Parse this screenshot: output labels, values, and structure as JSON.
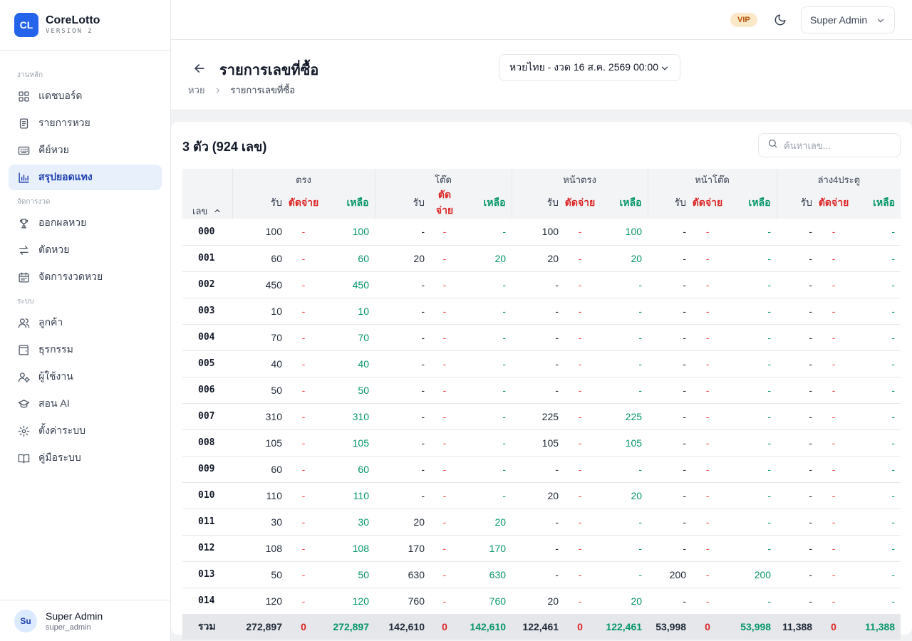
{
  "brand": {
    "logo": "CL",
    "name": "CoreLotto",
    "version": "VERSION 2"
  },
  "sidebar": {
    "sections": [
      {
        "title": "งานหลัก",
        "items": [
          {
            "label": "แดชบอร์ด",
            "icon": "dashboard-icon",
            "active": false
          },
          {
            "label": "รายการหวย",
            "icon": "document-icon",
            "active": false
          },
          {
            "label": "คีย์หวย",
            "icon": "keyboard-icon",
            "active": false
          },
          {
            "label": "สรุปยอดแทง",
            "icon": "bar-chart-icon",
            "active": true
          }
        ]
      },
      {
        "title": "จัดการงวด",
        "items": [
          {
            "label": "ออกผลหวย",
            "icon": "trophy-icon",
            "active": false
          },
          {
            "label": "ตัดหวย",
            "icon": "swap-icon",
            "active": false
          },
          {
            "label": "จัดการงวดหวย",
            "icon": "calendar-icon",
            "active": false
          }
        ]
      },
      {
        "title": "ระบบ",
        "items": [
          {
            "label": "ลูกค้า",
            "icon": "users-icon",
            "active": false
          },
          {
            "label": "ธุรกรรม",
            "icon": "wallet-icon",
            "active": false
          },
          {
            "label": "ผู้ใช้งาน",
            "icon": "user-gear-icon",
            "active": false
          },
          {
            "label": "สอน AI",
            "icon": "graduation-cap-icon",
            "active": false
          },
          {
            "label": "ตั้งค่าระบบ",
            "icon": "gear-icon",
            "active": false
          },
          {
            "label": "คู่มือระบบ",
            "icon": "book-icon",
            "active": false
          }
        ]
      }
    ],
    "footer": {
      "avatar": "Su",
      "name": "Super Admin",
      "handle": "super_admin"
    }
  },
  "topbar": {
    "vip": "VIP",
    "user_menu": "Super Admin"
  },
  "header": {
    "title": "รายการเลขที่ซื้อ",
    "breadcrumb": [
      "หวย",
      "รายการเลขที่ซื้อ"
    ],
    "period": "หวยไทย - งวด 16 ส.ค. 2569 00:00"
  },
  "card": {
    "title": "3 ตัว (924 เลข)",
    "search_placeholder": "ค้นหาเลข...",
    "num_header": "เลข",
    "groups": [
      "ตรง",
      "โต๊ด",
      "หน้าตรง",
      "หน้าโต๊ด",
      "ล่าง4ประตู"
    ],
    "sub_headers": {
      "receive": "รับ",
      "pay": "ตัดจ่าย",
      "remain": "เหลือ"
    },
    "rows": [
      [
        "000",
        "100",
        "-",
        "100",
        "-",
        "-",
        "-",
        "100",
        "-",
        "100",
        "-",
        "-",
        "-",
        "-",
        "-",
        "-"
      ],
      [
        "001",
        "60",
        "-",
        "60",
        "20",
        "-",
        "20",
        "20",
        "-",
        "20",
        "-",
        "-",
        "-",
        "-",
        "-",
        "-"
      ],
      [
        "002",
        "450",
        "-",
        "450",
        "-",
        "-",
        "-",
        "-",
        "-",
        "-",
        "-",
        "-",
        "-",
        "-",
        "-",
        "-"
      ],
      [
        "003",
        "10",
        "-",
        "10",
        "-",
        "-",
        "-",
        "-",
        "-",
        "-",
        "-",
        "-",
        "-",
        "-",
        "-",
        "-"
      ],
      [
        "004",
        "70",
        "-",
        "70",
        "-",
        "-",
        "-",
        "-",
        "-",
        "-",
        "-",
        "-",
        "-",
        "-",
        "-",
        "-"
      ],
      [
        "005",
        "40",
        "-",
        "40",
        "-",
        "-",
        "-",
        "-",
        "-",
        "-",
        "-",
        "-",
        "-",
        "-",
        "-",
        "-"
      ],
      [
        "006",
        "50",
        "-",
        "50",
        "-",
        "-",
        "-",
        "-",
        "-",
        "-",
        "-",
        "-",
        "-",
        "-",
        "-",
        "-"
      ],
      [
        "007",
        "310",
        "-",
        "310",
        "-",
        "-",
        "-",
        "225",
        "-",
        "225",
        "-",
        "-",
        "-",
        "-",
        "-",
        "-"
      ],
      [
        "008",
        "105",
        "-",
        "105",
        "-",
        "-",
        "-",
        "105",
        "-",
        "105",
        "-",
        "-",
        "-",
        "-",
        "-",
        "-"
      ],
      [
        "009",
        "60",
        "-",
        "60",
        "-",
        "-",
        "-",
        "-",
        "-",
        "-",
        "-",
        "-",
        "-",
        "-",
        "-",
        "-"
      ],
      [
        "010",
        "110",
        "-",
        "110",
        "-",
        "-",
        "-",
        "20",
        "-",
        "20",
        "-",
        "-",
        "-",
        "-",
        "-",
        "-"
      ],
      [
        "011",
        "30",
        "-",
        "30",
        "20",
        "-",
        "20",
        "-",
        "-",
        "-",
        "-",
        "-",
        "-",
        "-",
        "-",
        "-"
      ],
      [
        "012",
        "108",
        "-",
        "108",
        "170",
        "-",
        "170",
        "-",
        "-",
        "-",
        "-",
        "-",
        "-",
        "-",
        "-",
        "-"
      ],
      [
        "013",
        "50",
        "-",
        "50",
        "630",
        "-",
        "630",
        "-",
        "-",
        "-",
        "200",
        "-",
        "200",
        "-",
        "-",
        "-"
      ],
      [
        "014",
        "120",
        "-",
        "120",
        "760",
        "-",
        "760",
        "20",
        "-",
        "20",
        "-",
        "-",
        "-",
        "-",
        "-",
        "-"
      ]
    ],
    "totals": [
      "รวม",
      "272,897",
      "0",
      "272,897",
      "142,610",
      "0",
      "142,610",
      "122,461",
      "0",
      "122,461",
      "53,998",
      "0",
      "53,998",
      "11,388",
      "0",
      "11,388"
    ]
  },
  "colors": {
    "accent": "#2563eb",
    "pay": "#dc2626",
    "remain": "#059669",
    "vip_bg": "#fbe8c8",
    "vip_text": "#b45309"
  }
}
